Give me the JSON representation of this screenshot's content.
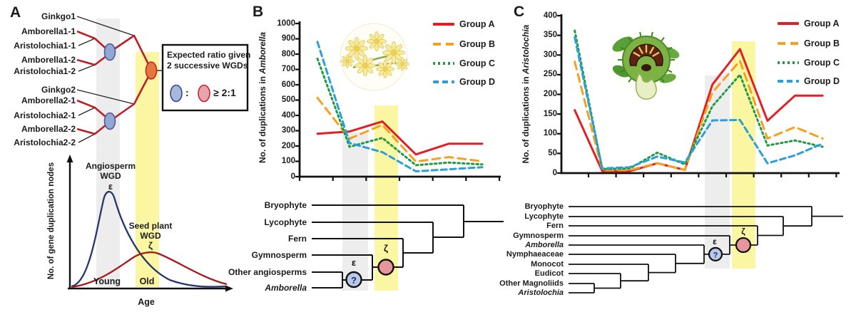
{
  "panels": {
    "a": {
      "letter": "A",
      "gene_tree_taxa": [
        "Ginkgo1",
        "Amborella1-1",
        "Aristolochia1-1",
        "Amborella1-2",
        "Aristolochia1-2",
        "Ginkgo2",
        "Amborella2-1",
        "Aristolochia2-1",
        "Amborella2-2",
        "Aristolochia2-2"
      ],
      "ratio_box": {
        "line1": "Expected ratio given",
        "line2": "2 successive WGDs",
        "colon": ":",
        "ratio": "≥ 2:1"
      },
      "curve_plot": {
        "ylabel": "No. of gene duplication nodes",
        "xlabel": "Age",
        "young": "Young",
        "old": "Old",
        "peak1": {
          "line1": "Angiosperm",
          "line2": "WGD",
          "symbol": "ε"
        },
        "peak2": {
          "line1": "Seed plant",
          "line2": "WGD",
          "symbol": "ζ"
        }
      }
    },
    "b": {
      "letter": "B",
      "ylabel_prefix": "No. of duplications in ",
      "ylabel_species": "Amborella",
      "tree": {
        "taxa": [
          {
            "label": "Bryophyte",
            "italic": false
          },
          {
            "label": "Lycophyte",
            "italic": false
          },
          {
            "label": "Fern",
            "italic": false
          },
          {
            "label": "Gymnosperm",
            "italic": false
          },
          {
            "label": "Other angiosperms",
            "italic": false
          },
          {
            "label": "Amborella",
            "italic": true
          }
        ],
        "epsilon": "ε",
        "zeta": "ζ",
        "question": "?"
      }
    },
    "c": {
      "letter": "C",
      "ylabel_prefix": "No. of duplications in ",
      "ylabel_species": "Aristolochia",
      "tree": {
        "taxa": [
          {
            "label": "Bryophyte",
            "italic": false
          },
          {
            "label": "Lycophyte",
            "italic": false
          },
          {
            "label": "Fern",
            "italic": false
          },
          {
            "label": "Gymnosperm",
            "italic": false
          },
          {
            "label": "Amborella",
            "italic": true
          },
          {
            "label": "Nymphaeaceae",
            "italic": false
          },
          {
            "label": "Monocot",
            "italic": false
          },
          {
            "label": "Eudicot",
            "italic": false
          },
          {
            "label": "Other Magnoliids",
            "italic": false
          },
          {
            "label": "Aristolochia",
            "italic": true
          }
        ],
        "epsilon": "ε",
        "zeta": "ζ",
        "question": "?"
      }
    }
  },
  "legend": [
    {
      "label": "Group A",
      "color": "#e31f26",
      "dash": "solid"
    },
    {
      "label": "Group B",
      "color": "#f5a01e",
      "dash": "long-dash"
    },
    {
      "label": "Group C",
      "color": "#1f9c3f",
      "dash": "dot"
    },
    {
      "label": "Group D",
      "color": "#2b9fd9",
      "dash": "dash"
    }
  ],
  "colors": {
    "gray_band": "#ededed",
    "yellow_band": "#fbf6a2",
    "epsilon_node_fill": "#b8c8e8",
    "zeta_node_fill": "#e8969e",
    "tree_line": "#111111",
    "branch_red": "#bf1e24"
  },
  "chart_data": [
    {
      "type": "line",
      "panel": "B",
      "title": "No. of duplications in Amborella",
      "ylabel": "No. of duplications in Amborella",
      "ylim": [
        0,
        1000
      ],
      "ytick_step": 100,
      "x_axis": {
        "tick_labels": "none",
        "n_points": 6
      },
      "grid": false,
      "legend_position": "top-right",
      "highlights": [
        {
          "band": "gray",
          "at_point_index": 1,
          "meaning": "ε WGD"
        },
        {
          "band": "yellow",
          "at_point_index": 2,
          "meaning": "ζ WGD"
        }
      ],
      "series": [
        {
          "name": "Group A",
          "color": "#e31f26",
          "dash": "solid",
          "values": [
            280,
            295,
            360,
            145,
            215,
            215
          ]
        },
        {
          "name": "Group B",
          "color": "#f5a01e",
          "dash": "long-dash",
          "values": [
            515,
            248,
            338,
            98,
            128,
            100
          ]
        },
        {
          "name": "Group C",
          "color": "#1f9c3f",
          "dash": "dot",
          "values": [
            770,
            195,
            253,
            75,
            92,
            80
          ]
        },
        {
          "name": "Group D",
          "color": "#2b9fd9",
          "dash": "dash",
          "values": [
            880,
            220,
            160,
            35,
            48,
            62
          ]
        }
      ]
    },
    {
      "type": "line",
      "panel": "C",
      "title": "No. of duplications in Aristolochia",
      "ylabel": "No. of duplications in Aristolochia",
      "ylim": [
        0,
        400
      ],
      "ytick_step": 50,
      "x_axis": {
        "tick_labels": "none",
        "n_points": 10
      },
      "grid": false,
      "legend_position": "top-right",
      "highlights": [
        {
          "band": "gray",
          "at_point_index": 5,
          "meaning": "ε WGD"
        },
        {
          "band": "yellow",
          "at_point_index": 6,
          "meaning": "ζ WGD"
        }
      ],
      "series": [
        {
          "name": "Group A",
          "color": "#e31f26",
          "dash": "solid",
          "values": [
            160,
            5,
            5,
            25,
            8,
            225,
            315,
            133,
            197,
            197
          ]
        },
        {
          "name": "Group B",
          "color": "#f5a01e",
          "dash": "long-dash",
          "values": [
            283,
            7,
            8,
            25,
            8,
            205,
            285,
            88,
            117,
            88
          ]
        },
        {
          "name": "Group C",
          "color": "#1f9c3f",
          "dash": "dot",
          "values": [
            362,
            10,
            12,
            52,
            22,
            170,
            250,
            70,
            83,
            67
          ]
        },
        {
          "name": "Group D",
          "color": "#2b9fd9",
          "dash": "dash",
          "values": [
            345,
            12,
            15,
            42,
            27,
            134,
            135,
            25,
            45,
            75
          ]
        }
      ]
    }
  ]
}
